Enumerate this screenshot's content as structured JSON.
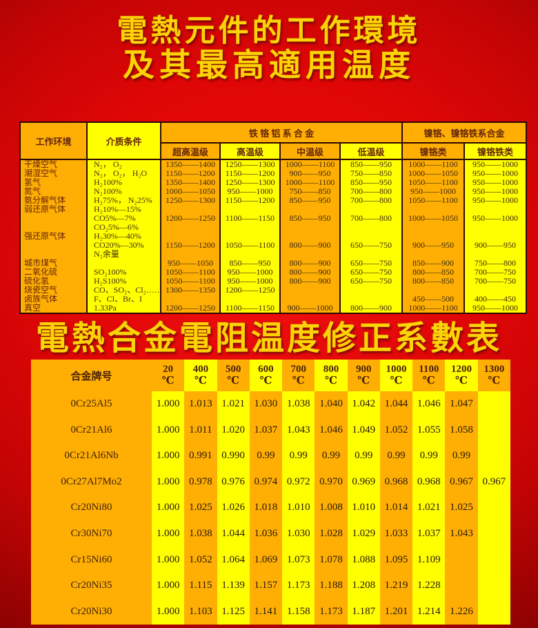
{
  "titles": {
    "line1": "電熱元件的工作環境",
    "line2": "及其最高適用温度",
    "title2": "電熱合金電阻温度修正系數表"
  },
  "colors": {
    "background_red": "#d40404",
    "stripe_orange": "#ffaf04",
    "stripe_yellow": "#ffff00",
    "title_yellow": "#fcd306",
    "table_border": "#2a0800"
  },
  "table1": {
    "header": {
      "col_env": "工作环境",
      "col_medium": "介质条件",
      "group_fecral": "铁 铬 铝 系 合 金",
      "group_nicr": "镍铬、镍铬铁系合金",
      "sub_cols": [
        "超高温级",
        "高温级",
        "中温级",
        "低温级",
        "镍铬类",
        "镍铬铁类"
      ]
    },
    "rows": [
      {
        "env": "干燥空气",
        "medium": "N₂， O₂",
        "v": [
          "1350——1400",
          "1250——1300",
          "1000——1100",
          "850——950",
          "1000——1100",
          "950——1000"
        ]
      },
      {
        "env": "潮湿空气",
        "medium": "N₂， O₂， H₂O",
        "v": [
          "1150——1200",
          "1150——1200",
          "900——950",
          "750——850",
          "1000——1050",
          "950——1000"
        ]
      },
      {
        "env": "氢气",
        "medium": "H₂100%",
        "v": [
          "1350——1400",
          "1250——1300",
          "1000——1100",
          "850——950",
          "1050——1100",
          "950——1000"
        ]
      },
      {
        "env": "氮气",
        "medium": "N₂100%",
        "v": [
          "1000——1050",
          "950——1000",
          "750——850",
          "700——800",
          "950——1000",
          "950——1000"
        ]
      },
      {
        "env": "氨分解气体",
        "medium": "H₂75%， N₂25%",
        "v": [
          "1250——1300",
          "1150——1200",
          "850——950",
          "700——800",
          "1050——1100",
          "950——1000"
        ]
      },
      {
        "env": "弱还原气体",
        "medium": "H₂10%—15%",
        "v": [
          "",
          "",
          "",
          "",
          "",
          ""
        ]
      },
      {
        "env": "",
        "medium": "CO5%—7%",
        "v": [
          "1200——1250",
          "1100——1150",
          "850——950",
          "700——800",
          "1000——1050",
          "950——1000"
        ]
      },
      {
        "env": "",
        "medium": "CO₂5%—6%",
        "v": [
          "",
          "",
          "",
          "",
          "",
          ""
        ]
      },
      {
        "env": "强还原气体",
        "medium": "H₂30%—40%",
        "v": [
          "",
          "",
          "",
          "",
          "",
          ""
        ]
      },
      {
        "env": "",
        "medium": "CO20%—30%",
        "v": [
          "1150——1200",
          "1050——1100",
          "800——900",
          "650——750",
          "900——950",
          "900——950"
        ]
      },
      {
        "env": "",
        "medium": "N₂余量",
        "v": [
          "",
          "",
          "",
          "",
          "",
          ""
        ]
      },
      {
        "env": "城市煤气",
        "medium": "",
        "v": [
          "950——1050",
          "850——950",
          "800——900",
          "650——750",
          "850——900",
          "750——800"
        ]
      },
      {
        "env": "二氧化硫",
        "medium": "SO₂100%",
        "v": [
          "1050——1100",
          "950——1000",
          "800——900",
          "650——750",
          "800——850",
          "700——750"
        ]
      },
      {
        "env": "硫化氢",
        "medium": "H₂S100%",
        "v": [
          "1050——1100",
          "950——1000",
          "800——900",
          "650——750",
          "800——850",
          "700——750"
        ]
      },
      {
        "env": "烧瓷空气",
        "medium": "CO、SO₂、Cl₂……",
        "v": [
          "1300——1350",
          "1200——1250",
          "",
          "",
          "",
          ""
        ]
      },
      {
        "env": "卤族气体",
        "medium": "F、Cl、Br、I",
        "v": [
          "",
          "",
          "",
          "",
          "450——500",
          "400——450"
        ]
      },
      {
        "env": "真空",
        "medium": "1.33Pa",
        "v": [
          "1200——1250",
          "1100——1150",
          "900——1000",
          "800——900",
          "1000——1100",
          "950——1000"
        ]
      }
    ]
  },
  "table2": {
    "header": {
      "alloy": "合金牌号",
      "unit": "℃",
      "temps": [
        "20",
        "400",
        "500",
        "600",
        "700",
        "800",
        "900",
        "1000",
        "1100",
        "1200",
        "1300"
      ]
    },
    "rows": [
      {
        "alloy": "0Cr25Al5",
        "v": [
          "1.000",
          "1.013",
          "1.021",
          "1.030",
          "1.038",
          "1.040",
          "1.042",
          "1.044",
          "1.046",
          "1.047",
          ""
        ]
      },
      {
        "alloy": "0Cr21Al6",
        "v": [
          "1.000",
          "1.011",
          "1.020",
          "1.037",
          "1.043",
          "1.046",
          "1.049",
          "1.052",
          "1.055",
          "1.058",
          ""
        ]
      },
      {
        "alloy": "0Cr21Al6Nb",
        "v": [
          "1.000",
          "0.991",
          "0.990",
          "0.99",
          "0.99",
          "0.99",
          "0.99",
          "0.99",
          "0.99",
          "0.99",
          ""
        ]
      },
      {
        "alloy": "0Cr27Al7Mo2",
        "v": [
          "1.000",
          "0.978",
          "0.976",
          "0.974",
          "0.972",
          "0.970",
          "0.969",
          "0.968",
          "0.968",
          "0.967",
          "0.967"
        ]
      },
      {
        "alloy": "Cr20Ni80",
        "v": [
          "1.000",
          "1.025",
          "1.026",
          "1.018",
          "1.010",
          "1.008",
          "1.010",
          "1.014",
          "1.021",
          "1.025",
          ""
        ]
      },
      {
        "alloy": "Cr30Ni70",
        "v": [
          "1.000",
          "1.038",
          "1.044",
          "1.036",
          "1.030",
          "1.028",
          "1.029",
          "1.033",
          "1.037",
          "1.043",
          ""
        ]
      },
      {
        "alloy": "Cr15Ni60",
        "v": [
          "1.000",
          "1.052",
          "1.064",
          "1.069",
          "1.073",
          "1.078",
          "1.088",
          "1.095",
          "1.109",
          "",
          ""
        ]
      },
      {
        "alloy": "Cr20Ni35",
        "v": [
          "1.000",
          "1.115",
          "1.139",
          "1.157",
          "1.173",
          "1.188",
          "1.208",
          "1.219",
          "1.228",
          "",
          ""
        ]
      },
      {
        "alloy": "Cr20Ni30",
        "v": [
          "1.000",
          "1.103",
          "1.125",
          "1.141",
          "1.158",
          "1.173",
          "1.187",
          "1.201",
          "1.214",
          "1.226",
          ""
        ]
      }
    ]
  }
}
